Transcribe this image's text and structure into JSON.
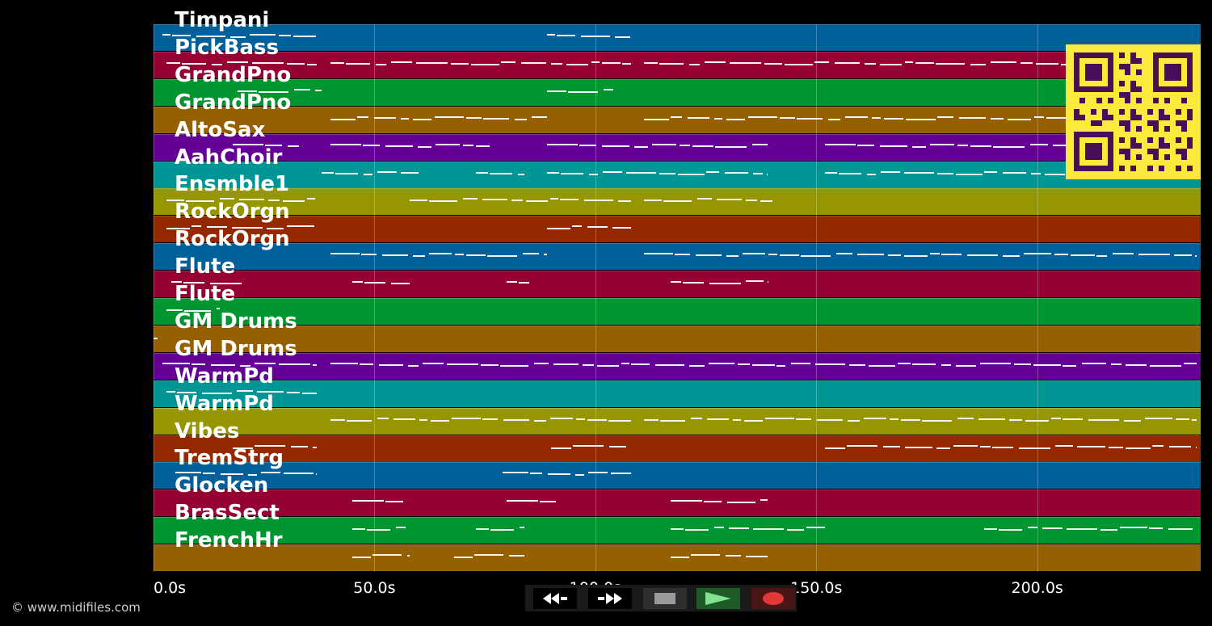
{
  "tracks": [
    {
      "name": "Timpani",
      "color": "#00619a"
    },
    {
      "name": "PickBass",
      "color": "#970032"
    },
    {
      "name": "GrandPno",
      "color": "#00962f"
    },
    {
      "name": "GrandPno",
      "color": "#965f00"
    },
    {
      "name": "AltoSax",
      "color": "#640096"
    },
    {
      "name": "AahChoir",
      "color": "#009696"
    },
    {
      "name": "Ensmble1",
      "color": "#969600"
    },
    {
      "name": "RockOrgn",
      "color": "#962800"
    },
    {
      "name": "RockOrgn",
      "color": "#00619a"
    },
    {
      "name": "Flute",
      "color": "#970032"
    },
    {
      "name": "Flute",
      "color": "#00962f"
    },
    {
      "name": "GM Drums",
      "color": "#965f00"
    },
    {
      "name": "GM Drums",
      "color": "#640096"
    },
    {
      "name": "WarmPd",
      "color": "#009696"
    },
    {
      "name": "WarmPd",
      "color": "#969600"
    },
    {
      "name": "Vibes",
      "color": "#962800"
    },
    {
      "name": "TremStrg",
      "color": "#00619a"
    },
    {
      "name": "Glocken",
      "color": "#970032"
    },
    {
      "name": "BrasSect",
      "color": "#00962f"
    },
    {
      "name": "FrenchHr",
      "color": "#965f00"
    }
  ],
  "axis": {
    "ticks": [
      "0.0s",
      "50.0s",
      "100.0s",
      "150.0s",
      "200.0s"
    ],
    "tick_seconds": [
      0,
      50,
      100,
      150,
      200
    ],
    "max_seconds": 237
  },
  "notes": [
    [
      [
        2,
        37
      ],
      [
        89,
        108
      ]
    ],
    [
      [
        3,
        37
      ],
      [
        40,
        108
      ],
      [
        111,
        236
      ]
    ],
    [
      [
        19,
        38
      ],
      [
        89,
        104
      ]
    ],
    [
      [
        40,
        89
      ],
      [
        111,
        236
      ]
    ],
    [
      [
        18,
        33
      ],
      [
        40,
        76
      ],
      [
        89,
        139
      ],
      [
        152,
        236
      ]
    ],
    [
      [
        38,
        60
      ],
      [
        73,
        84
      ],
      [
        89,
        139
      ],
      [
        152,
        236
      ]
    ],
    [
      [
        3,
        37
      ],
      [
        58,
        108
      ],
      [
        111,
        140
      ]
    ],
    [
      [
        3,
        37
      ],
      [
        89,
        108
      ]
    ],
    [
      [
        40,
        89
      ],
      [
        111,
        236
      ]
    ],
    [
      [
        4,
        20
      ],
      [
        45,
        58
      ],
      [
        80,
        85
      ],
      [
        117,
        139
      ]
    ],
    [
      [
        3,
        15
      ]
    ],
    [
      [
        0,
        1
      ]
    ],
    [
      [
        2,
        37
      ],
      [
        40,
        236
      ]
    ],
    [
      [
        3,
        37
      ]
    ],
    [
      [
        40,
        108
      ],
      [
        111,
        236
      ]
    ],
    [
      [
        18,
        37
      ],
      [
        90,
        108
      ],
      [
        152,
        236
      ]
    ],
    [
      [
        5,
        37
      ],
      [
        79,
        108
      ]
    ],
    [
      [
        45,
        57
      ],
      [
        80,
        91
      ],
      [
        117,
        139
      ]
    ],
    [
      [
        45,
        58
      ],
      [
        73,
        84
      ],
      [
        117,
        152
      ],
      [
        188,
        236
      ]
    ],
    [
      [
        45,
        58
      ],
      [
        68,
        84
      ],
      [
        117,
        139
      ]
    ]
  ],
  "transport": {
    "rewind": "rewind-icon",
    "fast_forward": "fast-forward-icon",
    "stop": "stop-icon",
    "play": "play-icon",
    "record": "record-icon"
  },
  "copyright": "© www.midifiles.com"
}
